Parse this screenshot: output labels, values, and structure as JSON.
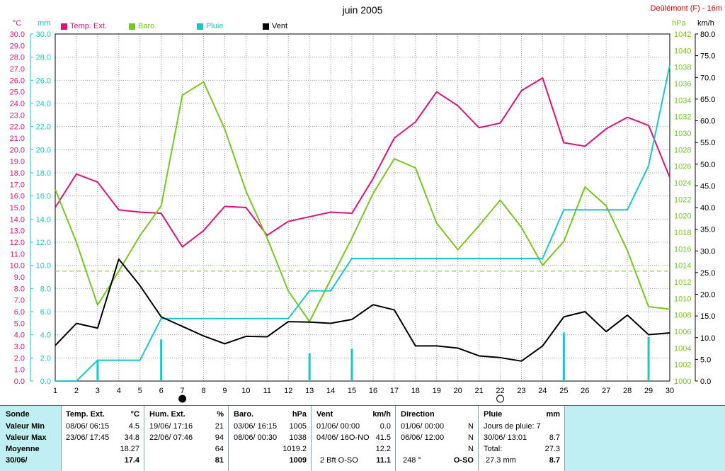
{
  "header": {
    "title": "juin 2005",
    "station": "Deûlémont (F) - 16m"
  },
  "legend": [
    {
      "label": "Temp. Ext.",
      "color": "#e0127a"
    },
    {
      "label": "Baro.",
      "color": "#76c81e"
    },
    {
      "label": "Pluie",
      "color": "#16c8c8"
    },
    {
      "label": "Vent",
      "color": "#000000"
    }
  ],
  "axes": {
    "left_temp_unit": "°C",
    "left_rain_unit": "mm",
    "right_baro_unit": "hPa",
    "right_wind_unit": "km/h",
    "temp_ticks": [
      "0.0",
      "1.0",
      "2.0",
      "3.0",
      "4.0",
      "5.0",
      "6.0",
      "7.0",
      "8.0",
      "9.0",
      "10.0",
      "11.0",
      "12.0",
      "13.0",
      "14.0",
      "15.0",
      "16.0",
      "17.0",
      "18.0",
      "19.0",
      "20.0",
      "21.0",
      "22.0",
      "23.0",
      "24.0",
      "25.0",
      "26.0",
      "27.0",
      "28.0",
      "29.0",
      "30.0"
    ],
    "rain_ticks": [
      "0.0",
      "2.0",
      "4.0",
      "6.0",
      "8.0",
      "10.0",
      "12.0",
      "14.0",
      "16.0",
      "18.0",
      "20.0",
      "22.0",
      "24.0",
      "26.0",
      "28.0",
      "30.0"
    ],
    "baro_ticks": [
      "1000",
      "1002",
      "1004",
      "1006",
      "1008",
      "1010",
      "1012",
      "1014",
      "1016",
      "1018",
      "1020",
      "1022",
      "1024",
      "1026",
      "1028",
      "1030",
      "1032",
      "1034",
      "1036",
      "1038",
      "1040",
      "1042"
    ],
    "wind_ticks": [
      "0.0",
      "5.0",
      "10.0",
      "15.0",
      "20.0",
      "25.0",
      "30.0",
      "35.0",
      "40.0",
      "45.0",
      "50.0",
      "55.0",
      "60.0",
      "65.0",
      "70.0",
      "75.0",
      "80.0"
    ],
    "x_ticks": [
      "1",
      "2",
      "3",
      "4",
      "5",
      "6",
      "7",
      "8",
      "9",
      "10",
      "11",
      "12",
      "13",
      "14",
      "15",
      "16",
      "17",
      "18",
      "19",
      "20",
      "21",
      "22",
      "23",
      "24",
      "25",
      "26",
      "27",
      "28",
      "29",
      "30"
    ]
  },
  "chart_data": {
    "type": "line",
    "title": "juin 2005",
    "x": [
      1,
      2,
      3,
      4,
      5,
      6,
      7,
      8,
      9,
      10,
      11,
      12,
      13,
      14,
      15,
      16,
      17,
      18,
      19,
      20,
      21,
      22,
      23,
      24,
      25,
      26,
      27,
      28,
      29,
      30
    ],
    "series": [
      {
        "name": "Temp. Ext.",
        "unit": "°C",
        "axis": "temp",
        "color": "#e0127a",
        "values": [
          15.0,
          17.9,
          17.2,
          14.8,
          14.6,
          14.5,
          11.6,
          13.0,
          15.1,
          15.0,
          12.6,
          13.8,
          14.2,
          14.6,
          14.5,
          17.5,
          21.0,
          22.4,
          25.0,
          23.8,
          21.9,
          22.3,
          25.1,
          26.2,
          20.6,
          20.3,
          21.8,
          22.8,
          22.1,
          17.6
        ]
      },
      {
        "name": "Baro.",
        "unit": "hPa",
        "axis": "baro",
        "color": "#76c81e",
        "values": [
          1023.2,
          1016.8,
          1009.2,
          1013.3,
          1017.6,
          1021.2,
          1034.6,
          1036.2,
          1030.5,
          1023.0,
          1017.3,
          1010.9,
          1007.2,
          1012.3,
          1017.3,
          1022.7,
          1026.9,
          1025.8,
          1019.1,
          1015.9,
          1018.8,
          1021.9,
          1018.6,
          1014.0,
          1016.9,
          1023.5,
          1021.2,
          1015.8,
          1009.0,
          1008.7
        ]
      },
      {
        "name": "Pluie",
        "unit": "mm",
        "axis": "rain",
        "color": "#16c8c8",
        "values": [
          0.0,
          0.0,
          1.8,
          1.8,
          1.8,
          5.4,
          5.4,
          5.4,
          5.4,
          5.4,
          5.4,
          5.4,
          7.8,
          7.8,
          10.6,
          10.6,
          10.6,
          10.6,
          10.6,
          10.6,
          10.6,
          10.6,
          10.6,
          10.6,
          14.8,
          14.8,
          14.8,
          14.8,
          18.6,
          27.3
        ],
        "daily_bars": [
          {
            "x": 3,
            "value": 1.8
          },
          {
            "x": 6,
            "value": 3.6
          },
          {
            "x": 13,
            "value": 2.4
          },
          {
            "x": 15,
            "value": 2.8
          },
          {
            "x": 25,
            "value": 4.2
          },
          {
            "x": 29,
            "value": 3.8
          }
        ]
      },
      {
        "name": "Vent",
        "unit": "km/h",
        "axis": "wind",
        "color": "#000000",
        "values": [
          8.2,
          13.3,
          12.2,
          28.1,
          22.0,
          14.8,
          12.6,
          10.4,
          8.6,
          10.3,
          10.2,
          13.7,
          13.6,
          13.3,
          14.2,
          17.6,
          16.4,
          8.1,
          8.1,
          7.6,
          5.8,
          5.4,
          4.6,
          8.1,
          14.8,
          16.0,
          11.4,
          15.2,
          10.7,
          11.1
        ]
      }
    ],
    "dashed_reference": {
      "axis": "temp",
      "value": 9.5,
      "color": "#76c81e"
    },
    "moon_phases": [
      {
        "x": 7,
        "phase": "new"
      },
      {
        "x": 22,
        "phase": "full"
      }
    ],
    "temp_ylim": [
      0,
      30
    ],
    "rain_ylim": [
      0,
      30
    ],
    "baro_ylim": [
      1000,
      1042
    ],
    "wind_ylim": [
      0,
      80
    ],
    "grid": true
  },
  "summary": {
    "row_labels": [
      "Sonde",
      "Valeur Min",
      "Valeur Max",
      "Moyenne",
      "30/06/"
    ],
    "temp": {
      "header": "Temp. Ext.",
      "unit": "°C",
      "min_date": "08/06/  06:15",
      "min": "4.5",
      "max_date": "23/06/  17:45",
      "max": "34.8",
      "avg": "18.27",
      "today": "17.4"
    },
    "hum": {
      "header": "Hum. Ext.",
      "unit": "%",
      "min_date": "19/06/  17:16",
      "min": "21",
      "max_date": "22/06/  07:46",
      "max": "94",
      "avg": "64",
      "today": "81"
    },
    "baro": {
      "header": "Baro.",
      "unit": "hPa",
      "min_date": "03/06/  16:15",
      "min": "1005",
      "max_date": "08/06/  00:30",
      "max": "1038",
      "avg": "1019.2",
      "today": "1009"
    },
    "vent": {
      "header": "Vent",
      "unit": "km/h",
      "min_date": "01/06/  00:00",
      "min": "0.0",
      "max_date": "04/06/  16O-NO",
      "max": "41.5",
      "avg": "12.2",
      "today_label": "2 Bft O-SO",
      "today": "11.1"
    },
    "direction": {
      "header": "Direction",
      "min_date": "01/06/  00:00",
      "min": "N",
      "max_date": "06/06/  12:00",
      "max": "N",
      "avg": "N",
      "today_label": "248 °",
      "today": "O-SO"
    },
    "pluie": {
      "header": "Pluie",
      "unit": "mm",
      "days_label": "Jours de pluie: 7",
      "max_date": "30/06/  13:01",
      "max": "8.7",
      "total_label": "Total:",
      "total": "27.3",
      "today_label": "27.3 mm",
      "today": "8.7"
    }
  }
}
